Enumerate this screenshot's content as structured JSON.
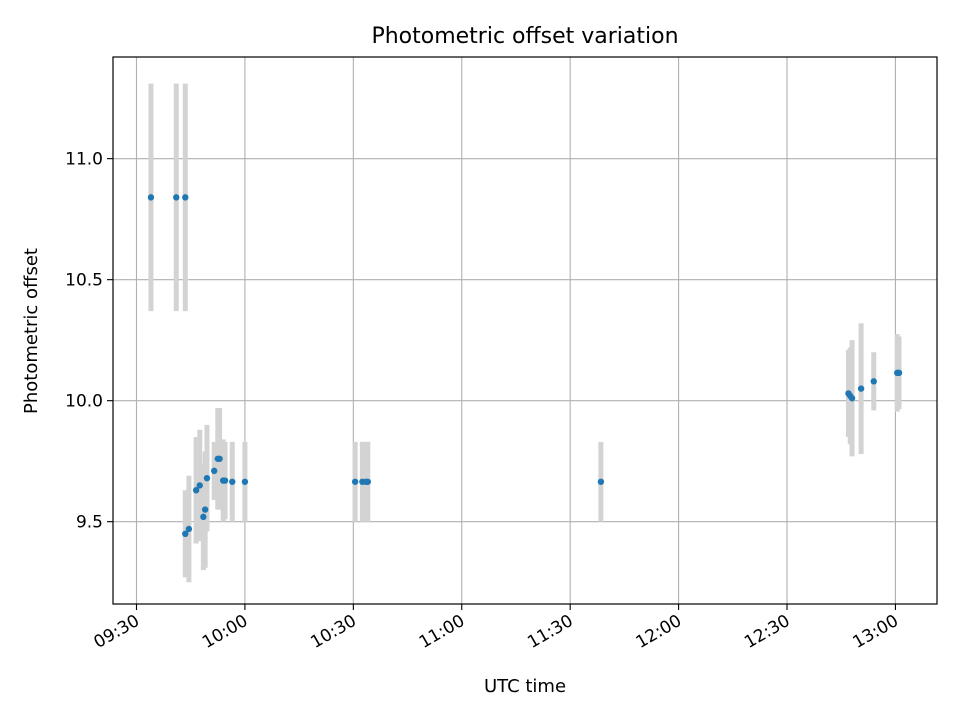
{
  "chart_data": {
    "type": "scatter",
    "title": "Photometric offset variation",
    "xlabel": "UTC time",
    "ylabel": "Photometric offset",
    "x_ticks": [
      "09:30",
      "10:00",
      "10:30",
      "11:00",
      "11:30",
      "12:00",
      "12:30",
      "13:00"
    ],
    "y_ticks": [
      9.5,
      10.0,
      10.5,
      11.0
    ],
    "y_tick_labels": [
      "9.5",
      "10.0",
      "10.5",
      "11.0"
    ],
    "xlim": [
      "09:23:30",
      "13:11:30"
    ],
    "ylim": [
      9.16,
      11.42
    ],
    "grid": true,
    "errorbar_color": "#d3d3d3",
    "marker_color": "#1f77b4",
    "points": [
      {
        "t": "09:34:00",
        "y": 10.84,
        "err": 0.47
      },
      {
        "t": "09:41:00",
        "y": 10.84,
        "err": 0.47
      },
      {
        "t": "09:43:30",
        "y": 10.84,
        "err": 0.47
      },
      {
        "t": "09:43:30",
        "y": 9.45,
        "err": 0.18
      },
      {
        "t": "09:44:30",
        "y": 9.47,
        "err": 0.22
      },
      {
        "t": "09:46:30",
        "y": 9.63,
        "err": 0.22
      },
      {
        "t": "09:47:30",
        "y": 9.65,
        "err": 0.23
      },
      {
        "t": "09:48:30",
        "y": 9.52,
        "err": 0.22
      },
      {
        "t": "09:49:00",
        "y": 9.55,
        "err": 0.24
      },
      {
        "t": "09:49:30",
        "y": 9.68,
        "err": 0.22
      },
      {
        "t": "09:51:30",
        "y": 9.71,
        "err": 0.12
      },
      {
        "t": "09:52:30",
        "y": 9.76,
        "err": 0.21
      },
      {
        "t": "09:53:00",
        "y": 9.76,
        "err": 0.21
      },
      {
        "t": "09:54:00",
        "y": 9.67,
        "err": 0.17
      },
      {
        "t": "09:54:30",
        "y": 9.67,
        "err": 0.16
      },
      {
        "t": "09:56:30",
        "y": 9.665,
        "err": 0.165
      },
      {
        "t": "10:00:00",
        "y": 9.665,
        "err": 0.165
      },
      {
        "t": "10:30:30",
        "y": 9.665,
        "err": 0.165
      },
      {
        "t": "10:32:30",
        "y": 9.665,
        "err": 0.165
      },
      {
        "t": "10:33:30",
        "y": 9.665,
        "err": 0.165
      },
      {
        "t": "10:34:00",
        "y": 9.665,
        "err": 0.165
      },
      {
        "t": "11:38:30",
        "y": 9.665,
        "err": 0.165
      },
      {
        "t": "12:47:00",
        "y": 10.03,
        "err": 0.18
      },
      {
        "t": "12:47:30",
        "y": 10.02,
        "err": 0.2
      },
      {
        "t": "12:48:00",
        "y": 10.01,
        "err": 0.24
      },
      {
        "t": "12:50:30",
        "y": 10.05,
        "err": 0.27
      },
      {
        "t": "12:54:00",
        "y": 10.08,
        "err": 0.12
      },
      {
        "t": "13:00:30",
        "y": 10.115,
        "err": 0.16
      },
      {
        "t": "13:01:00",
        "y": 10.115,
        "err": 0.15
      }
    ]
  }
}
